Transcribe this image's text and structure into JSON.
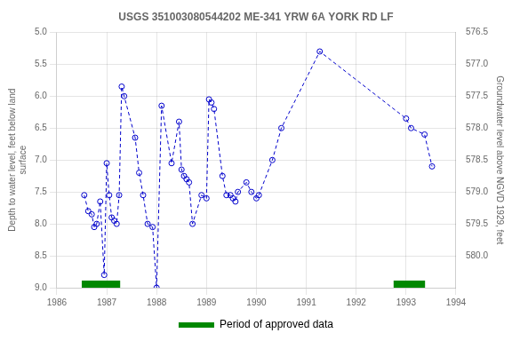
{
  "chart_data": {
    "type": "line",
    "title": "USGS 351003080544202 ME-341 YRW 6A YORK RD LF",
    "y_label": "Depth to water level, feet below land\nsurface",
    "y2_label": "Groundwater level above NGVD 1929, feet",
    "x": [
      1986.55,
      1986.63,
      1986.7,
      1986.75,
      1986.8,
      1986.87,
      1986.95,
      1987.0,
      1987.05,
      1987.1,
      1987.15,
      1987.2,
      1987.25,
      1987.3,
      1987.35,
      1987.57,
      1987.65,
      1987.73,
      1987.82,
      1987.92,
      1988.0,
      1988.1,
      1988.3,
      1988.45,
      1988.5,
      1988.55,
      1988.6,
      1988.65,
      1988.72,
      1988.9,
      1989.0,
      1989.05,
      1989.1,
      1989.15,
      1989.32,
      1989.4,
      1989.48,
      1989.53,
      1989.58,
      1989.63,
      1989.8,
      1989.9,
      1990.0,
      1990.05,
      1990.32,
      1990.5,
      1991.27,
      1993.0,
      1993.1,
      1993.37,
      1993.52
    ],
    "values": [
      7.55,
      7.8,
      7.85,
      8.05,
      8.0,
      7.65,
      8.8,
      7.05,
      7.55,
      7.9,
      7.95,
      8.0,
      7.55,
      5.85,
      6.0,
      6.65,
      7.2,
      7.55,
      8.0,
      8.05,
      9.0,
      6.15,
      7.05,
      6.4,
      7.15,
      7.25,
      7.3,
      7.35,
      8.0,
      7.55,
      7.6,
      6.05,
      6.1,
      6.2,
      7.25,
      7.55,
      7.55,
      7.6,
      7.65,
      7.5,
      7.35,
      7.5,
      7.6,
      7.55,
      7.0,
      6.5,
      5.3,
      6.35,
      6.5,
      6.6,
      7.1
    ],
    "color": "#0000cc",
    "marker": "circle",
    "line_style": "dashed",
    "xlim": [
      1986,
      1994
    ],
    "xticks": [
      1986,
      1987,
      1988,
      1989,
      1990,
      1991,
      1992,
      1993,
      1994
    ],
    "ylim": [
      9.0,
      5.0
    ],
    "yticks": [
      {
        "value": 5.0,
        "label": "5.0"
      },
      {
        "value": 5.5,
        "label": "5.5"
      },
      {
        "value": 6.0,
        "label": "6.0"
      },
      {
        "value": 6.5,
        "label": "6.5"
      },
      {
        "value": 7.0,
        "label": "7.0"
      },
      {
        "value": 7.5,
        "label": "7.5"
      },
      {
        "value": 8.0,
        "label": "8.0"
      },
      {
        "value": 8.5,
        "label": "8.5"
      },
      {
        "value": 9.0,
        "label": "9.0"
      }
    ],
    "y2lim": [
      580.5,
      576.5
    ],
    "y2ticks": [
      {
        "value": 580.0,
        "label": "580.0"
      },
      {
        "value": 579.5,
        "label": "579.5"
      },
      {
        "value": 579.0,
        "label": "579.0"
      },
      {
        "value": 578.5,
        "label": "578.5"
      },
      {
        "value": 578.0,
        "label": "578.0"
      },
      {
        "value": 577.5,
        "label": "577.5"
      },
      {
        "value": 577.0,
        "label": "577.0"
      },
      {
        "value": 576.5,
        "label": "576.5"
      }
    ],
    "periods": {
      "name": "Period of approved data",
      "color": "#008800",
      "ranges": [
        [
          1986.5,
          1987.27
        ],
        [
          1992.75,
          1993.38
        ]
      ]
    },
    "grid": true,
    "legend": "bottom"
  }
}
